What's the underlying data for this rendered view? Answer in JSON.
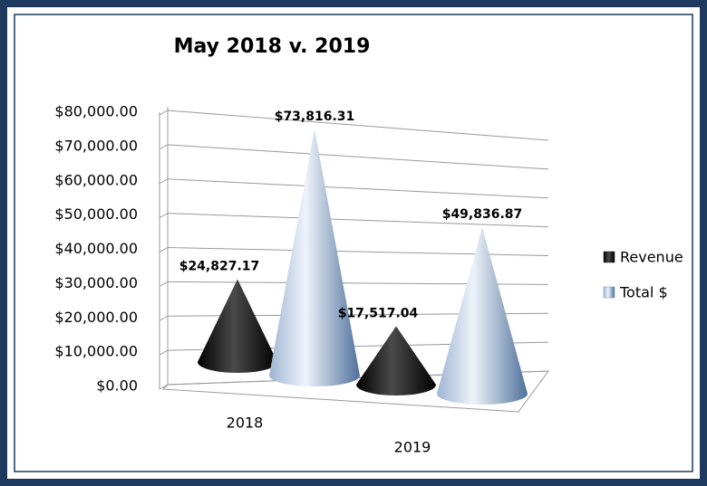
{
  "chart_data": {
    "type": "cone3d",
    "title": "May 2018 v. 2019",
    "categories": [
      "2018",
      "2019"
    ],
    "series": [
      {
        "name": "Revenue",
        "color": "#1a1a1a",
        "values": [
          24827.17,
          17517.04
        ],
        "value_labels": [
          "$24,827.17",
          "$17,517.04"
        ]
      },
      {
        "name": "Total $",
        "color": "#6d8fbf",
        "values": [
          73816.31,
          49836.87
        ],
        "value_labels": [
          "$73,816.31",
          "$49,836.87"
        ]
      }
    ],
    "ylim": [
      0,
      80000
    ],
    "yticks": [
      {
        "value": 0,
        "label": "$0.00"
      },
      {
        "value": 10000,
        "label": "$10,000.00"
      },
      {
        "value": 20000,
        "label": "$20,000.00"
      },
      {
        "value": 30000,
        "label": "$30,000.00"
      },
      {
        "value": 40000,
        "label": "$40,000.00"
      },
      {
        "value": 50000,
        "label": "$50,000.00"
      },
      {
        "value": 60000,
        "label": "$60,000.00"
      },
      {
        "value": 70000,
        "label": "$70,000.00"
      },
      {
        "value": 80000,
        "label": "$80,000.00"
      }
    ],
    "grid": true,
    "legend": "right"
  }
}
